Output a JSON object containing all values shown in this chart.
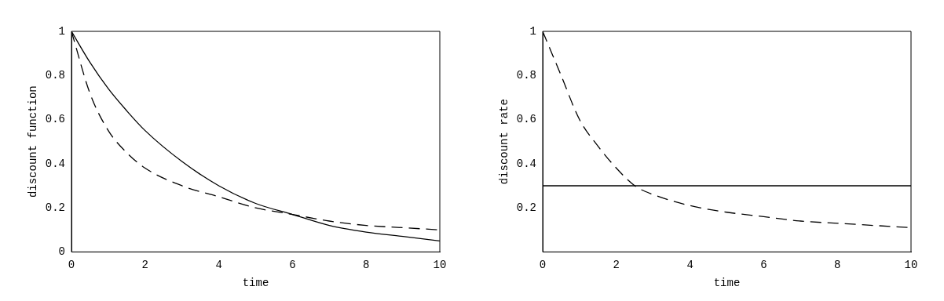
{
  "chart_data": [
    {
      "type": "line",
      "xlabel": "time",
      "ylabel": "discount function",
      "xlim": [
        0,
        10
      ],
      "ylim": [
        0,
        1
      ],
      "xticks": [
        0,
        2,
        4,
        6,
        8,
        10
      ],
      "yticks": [
        0,
        0.2,
        0.4,
        0.6,
        0.8,
        1
      ],
      "grid": false,
      "legend": false,
      "marker": "none",
      "series": [
        {
          "color": "#000000",
          "line_style": "solid",
          "x": [
            0,
            0.5,
            1,
            1.5,
            2,
            3,
            4,
            5,
            6,
            7,
            8,
            9,
            10
          ],
          "values": [
            1,
            0.86,
            0.74,
            0.64,
            0.55,
            0.41,
            0.3,
            0.22,
            0.17,
            0.12,
            0.09,
            0.07,
            0.05
          ]
        },
        {
          "color": "#000000",
          "line_style": "dashed",
          "x": [
            0,
            0.5,
            1,
            1.5,
            2,
            3,
            4,
            5,
            6,
            7,
            8,
            9,
            10
          ],
          "values": [
            1,
            0.72,
            0.55,
            0.45,
            0.38,
            0.3,
            0.25,
            0.2,
            0.17,
            0.14,
            0.12,
            0.11,
            0.1
          ]
        }
      ]
    },
    {
      "type": "line",
      "xlabel": "time",
      "ylabel": "discount rate",
      "xlim": [
        0,
        10
      ],
      "ylim": [
        0,
        1
      ],
      "xticks": [
        0,
        2,
        4,
        6,
        8,
        10
      ],
      "yticks": [
        0.2,
        0.4,
        0.6,
        0.8,
        1
      ],
      "grid": false,
      "legend": false,
      "marker": "none",
      "series": [
        {
          "color": "#000000",
          "line_style": "solid",
          "x": [
            0,
            10
          ],
          "values": [
            0.3,
            0.3
          ]
        },
        {
          "color": "#000000",
          "line_style": "dashed",
          "x": [
            0,
            0.5,
            1,
            1.5,
            2,
            2.5,
            3,
            4,
            5,
            6,
            7,
            8,
            9,
            10
          ],
          "values": [
            1,
            0.8,
            0.6,
            0.48,
            0.38,
            0.3,
            0.26,
            0.21,
            0.18,
            0.16,
            0.14,
            0.13,
            0.12,
            0.11
          ]
        }
      ]
    }
  ]
}
